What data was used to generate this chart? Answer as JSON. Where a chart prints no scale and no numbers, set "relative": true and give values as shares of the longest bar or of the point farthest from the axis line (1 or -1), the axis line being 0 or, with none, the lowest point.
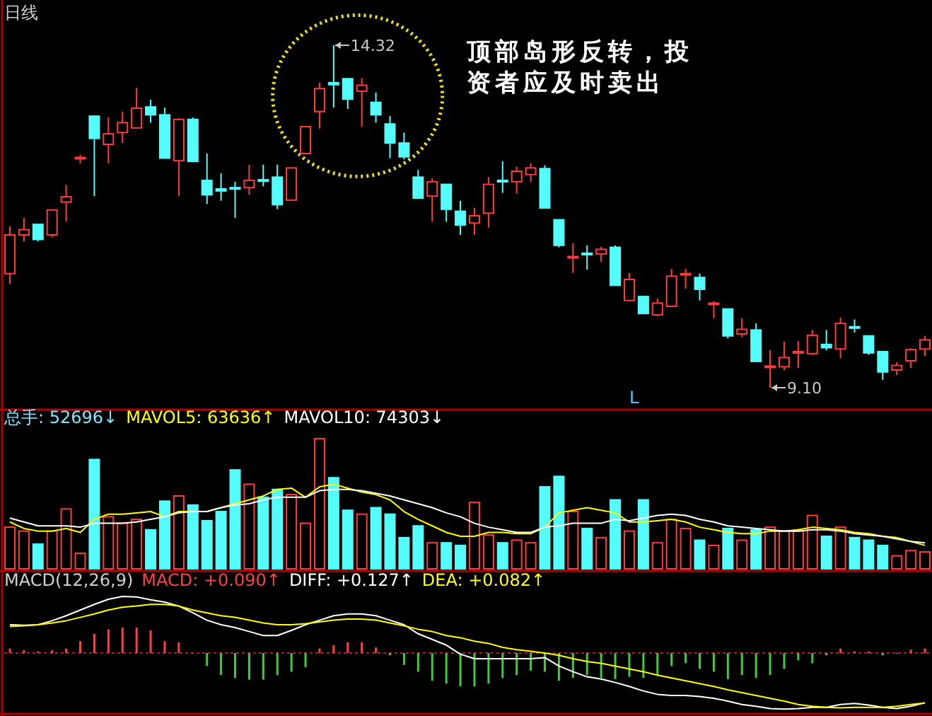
{
  "chart_data": [
    {
      "type": "candlestick",
      "title": "日线",
      "categories": [
        null,
        null,
        null,
        null,
        null,
        null,
        null,
        null,
        null,
        null,
        null,
        null,
        null,
        null,
        null,
        null,
        null,
        null,
        null,
        null,
        null,
        null,
        null,
        null,
        null,
        null,
        null,
        null,
        null,
        null,
        null,
        null,
        null,
        null,
        null,
        null,
        null,
        null,
        null,
        null,
        null,
        null,
        null,
        null,
        null,
        null,
        null,
        null,
        null,
        null,
        null,
        null,
        null,
        null,
        null,
        null,
        null,
        null,
        null,
        null,
        null,
        null,
        null,
        null,
        null,
        null
      ],
      "ohlc": [
        [
          10.84,
          11.56,
          10.68,
          11.43
        ],
        [
          11.43,
          11.69,
          11.33,
          11.51
        ],
        [
          11.59,
          11.59,
          11.33,
          11.36
        ],
        [
          11.43,
          11.81,
          11.39,
          11.81
        ],
        [
          11.93,
          12.19,
          11.63,
          12.01
        ],
        [
          12.6,
          12.65,
          12.52,
          12.61
        ],
        [
          13.24,
          13.24,
          12.02,
          12.9
        ],
        [
          12.81,
          13.22,
          12.52,
          12.97
        ],
        [
          12.99,
          13.31,
          12.83,
          13.14
        ],
        [
          13.06,
          13.67,
          13.06,
          13.36
        ],
        [
          13.38,
          13.49,
          13.14,
          13.26
        ],
        [
          13.26,
          13.37,
          12.6,
          12.6
        ],
        [
          12.56,
          13.21,
          12.02,
          13.19
        ],
        [
          13.19,
          13.22,
          12.55,
          12.55
        ],
        [
          12.26,
          12.67,
          11.9,
          12.04
        ],
        [
          12.13,
          12.37,
          11.95,
          12.1
        ],
        [
          12.15,
          12.24,
          11.69,
          12.14
        ],
        [
          12.15,
          12.5,
          12.04,
          12.26
        ],
        [
          12.27,
          12.5,
          12.17,
          12.25
        ],
        [
          12.31,
          12.5,
          11.82,
          11.89
        ],
        [
          11.96,
          12.45,
          11.96,
          12.45
        ],
        [
          12.67,
          13.08,
          12.67,
          13.08
        ],
        [
          13.31,
          13.75,
          13.05,
          13.66
        ],
        [
          13.75,
          14.32,
          13.37,
          13.72
        ],
        [
          13.81,
          13.81,
          13.35,
          13.5
        ],
        [
          13.62,
          13.82,
          13.08,
          13.71
        ],
        [
          13.45,
          13.6,
          13.14,
          13.26
        ],
        [
          13.12,
          13.24,
          12.6,
          12.83
        ],
        [
          12.83,
          12.99,
          12.58,
          12.62
        ],
        [
          12.31,
          12.42,
          11.99,
          11.99
        ],
        [
          12.02,
          12.29,
          11.63,
          12.24
        ],
        [
          12.2,
          12.2,
          11.63,
          11.82
        ],
        [
          11.79,
          11.95,
          11.43,
          11.58
        ],
        [
          11.61,
          11.84,
          11.43,
          11.72
        ],
        [
          11.76,
          12.31,
          11.54,
          12.2
        ],
        [
          12.26,
          12.55,
          12.07,
          12.24
        ],
        [
          12.24,
          12.47,
          12.06,
          12.4
        ],
        [
          12.35,
          12.52,
          12.24,
          12.45
        ],
        [
          12.44,
          12.49,
          11.84,
          11.84
        ],
        [
          11.66,
          11.66,
          11.24,
          11.27
        ],
        [
          11.09,
          11.3,
          10.85,
          11.1
        ],
        [
          11.15,
          11.27,
          10.9,
          11.13
        ],
        [
          11.14,
          11.25,
          11.02,
          11.21
        ],
        [
          11.24,
          11.27,
          10.66,
          10.66
        ],
        [
          10.43,
          10.85,
          10.43,
          10.75
        ],
        [
          10.49,
          10.49,
          10.23,
          10.23
        ],
        [
          10.21,
          10.46,
          10.19,
          10.39
        ],
        [
          10.34,
          10.91,
          10.34,
          10.8
        ],
        [
          10.82,
          10.91,
          10.61,
          10.84
        ],
        [
          10.78,
          10.84,
          10.43,
          10.6
        ],
        [
          10.37,
          10.42,
          10.16,
          10.39
        ],
        [
          10.3,
          10.3,
          9.85,
          9.89
        ],
        [
          9.92,
          10.16,
          9.87,
          9.99
        ],
        [
          9.98,
          10.08,
          9.5,
          9.5
        ],
        [
          9.42,
          9.67,
          9.1,
          9.43
        ],
        [
          9.42,
          9.8,
          9.37,
          9.56
        ],
        [
          9.63,
          9.81,
          9.4,
          9.65
        ],
        [
          9.62,
          9.98,
          9.6,
          9.9
        ],
        [
          9.76,
          9.98,
          9.67,
          9.71
        ],
        [
          9.69,
          10.17,
          9.55,
          10.08
        ],
        [
          10.03,
          10.14,
          9.94,
          10.02
        ],
        [
          9.89,
          9.89,
          9.6,
          9.63
        ],
        [
          9.65,
          9.65,
          9.22,
          9.34
        ],
        [
          9.37,
          9.49,
          9.29,
          9.44
        ],
        [
          9.51,
          9.7,
          9.4,
          9.68
        ],
        [
          9.69,
          9.89,
          9.58,
          9.83
        ]
      ],
      "colors": [
        "#ff3c3c",
        "#ff3c3c",
        "#54fcfc",
        "#ff3c3c",
        "#ff3c3c",
        "#ff3c3c",
        "#54fcfc",
        "#ff3c3c",
        "#ff3c3c",
        "#ff3c3c",
        "#54fcfc",
        "#54fcfc",
        "#ff3c3c",
        "#54fcfc",
        "#54fcfc",
        "#54fcfc",
        "#54fcfc",
        "#ff3c3c",
        "#54fcfc",
        "#54fcfc",
        "#ff3c3c",
        "#ff3c3c",
        "#ff3c3c",
        "#54fcfc",
        "#54fcfc",
        "#ff3c3c",
        "#54fcfc",
        "#54fcfc",
        "#54fcfc",
        "#54fcfc",
        "#ff3c3c",
        "#54fcfc",
        "#54fcfc",
        "#ff3c3c",
        "#ff3c3c",
        "#54fcfc",
        "#ff3c3c",
        "#ff3c3c",
        "#54fcfc",
        "#54fcfc",
        "#ff3c3c",
        "#54fcfc",
        "#ff3c3c",
        "#54fcfc",
        "#ff3c3c",
        "#54fcfc",
        "#ff3c3c",
        "#ff3c3c",
        "#ff3c3c",
        "#54fcfc",
        "#ff3c3c",
        "#54fcfc",
        "#ff3c3c",
        "#54fcfc",
        "#ff3c3c",
        "#ff3c3c",
        "#ff3c3c",
        "#ff3c3c",
        "#54fcfc",
        "#ff3c3c",
        "#54fcfc",
        "#54fcfc",
        "#54fcfc",
        "#ff3c3c",
        "#ff3c3c",
        "#ff3c3c"
      ],
      "annotations": [
        "14.32",
        "9.10",
        "L",
        "顶部岛形反转，投资者应及时卖出"
      ]
    },
    {
      "type": "bar",
      "relative": true,
      "legend": "top left",
      "categories": [
        null,
        null,
        null,
        null,
        null,
        null,
        null,
        null,
        null,
        null,
        null,
        null,
        null,
        null,
        null,
        null,
        null,
        null,
        null,
        null,
        null,
        null,
        null,
        null,
        null,
        null,
        null,
        null,
        null,
        null,
        null,
        null,
        null,
        null,
        null,
        null,
        null,
        null,
        null,
        null,
        null,
        null,
        null,
        null,
        null,
        null,
        null,
        null,
        null,
        null,
        null,
        null,
        null,
        null,
        null,
        null,
        null,
        null,
        null,
        null,
        null,
        null,
        null,
        null,
        null,
        null
      ],
      "series": [
        {
          "name": "总手: 52696↓",
          "type": "bar",
          "color": "#7fe6ff",
          "colors": [
            "#ff3c3c",
            "#ff3c3c",
            "#54fcfc",
            "#ff3c3c",
            "#ff3c3c",
            "#ff3c3c",
            "#54fcfc",
            "#ff3c3c",
            "#ff3c3c",
            "#ff3c3c",
            "#54fcfc",
            "#54fcfc",
            "#ff3c3c",
            "#54fcfc",
            "#54fcfc",
            "#54fcfc",
            "#54fcfc",
            "#ff3c3c",
            "#54fcfc",
            "#54fcfc",
            "#ff3c3c",
            "#ff3c3c",
            "#ff3c3c",
            "#54fcfc",
            "#54fcfc",
            "#ff3c3c",
            "#54fcfc",
            "#54fcfc",
            "#54fcfc",
            "#54fcfc",
            "#ff3c3c",
            "#54fcfc",
            "#54fcfc",
            "#ff3c3c",
            "#ff3c3c",
            "#54fcfc",
            "#ff3c3c",
            "#ff3c3c",
            "#54fcfc",
            "#54fcfc",
            "#ff3c3c",
            "#54fcfc",
            "#ff3c3c",
            "#54fcfc",
            "#ff3c3c",
            "#54fcfc",
            "#ff3c3c",
            "#ff3c3c",
            "#ff3c3c",
            "#54fcfc",
            "#ff3c3c",
            "#54fcfc",
            "#ff3c3c",
            "#54fcfc",
            "#ff3c3c",
            "#ff3c3c",
            "#ff3c3c",
            "#ff3c3c",
            "#54fcfc",
            "#ff3c3c",
            "#54fcfc",
            "#54fcfc",
            "#54fcfc",
            "#ff3c3c",
            "#ff3c3c",
            "#ff3c3c"
          ],
          "values": [
            0.32,
            0.29,
            0.19,
            0.29,
            0.46,
            0.12,
            0.84,
            0.4,
            0.35,
            0.38,
            0.3,
            0.52,
            0.56,
            0.49,
            0.37,
            0.44,
            0.76,
            0.65,
            0.55,
            0.61,
            0.57,
            0.35,
            1,
            0.7,
            0.45,
            0.42,
            0.47,
            0.42,
            0.24,
            0.33,
            0.2,
            0.2,
            0.18,
            0.51,
            0.26,
            0.2,
            0.22,
            0.2,
            0.63,
            0.71,
            0.44,
            0.31,
            0.24,
            0.53,
            0.29,
            0.53,
            0.2,
            0.38,
            0.31,
            0.22,
            0.18,
            0.31,
            0.22,
            0.3,
            0.32,
            0.29,
            0.29,
            0.41,
            0.25,
            0.32,
            0.24,
            0.22,
            0.18,
            0.1,
            0.14,
            0.13
          ]
        },
        {
          "name": "MAVOL5: 63636↑",
          "type": "line",
          "color": "#ffff00",
          "values": [
            0.36,
            0.31,
            0.29,
            0.29,
            0.31,
            0.28,
            0.38,
            0.42,
            0.42,
            0.43,
            0.44,
            0.4,
            0.44,
            0.44,
            0.44,
            0.47,
            0.5,
            0.53,
            0.56,
            0.61,
            0.62,
            0.55,
            0.63,
            0.65,
            0.62,
            0.59,
            0.57,
            0.53,
            0.44,
            0.38,
            0.33,
            0.28,
            0.25,
            0.25,
            0.28,
            0.28,
            0.27,
            0.27,
            0.32,
            0.43,
            0.45,
            0.47,
            0.45,
            0.43,
            0.36,
            0.36,
            0.37,
            0.38,
            0.36,
            0.32,
            0.3,
            0.28,
            0.27,
            0.27,
            0.29,
            0.29,
            0.3,
            0.32,
            0.31,
            0.3,
            0.28,
            0.27,
            0.25,
            0.24,
            0.21,
            0.18
          ]
        },
        {
          "name": "MAVOL10: 74303↓",
          "type": "line",
          "color": "#ffffff",
          "values": [
            0.39,
            0.36,
            0.33,
            0.33,
            0.33,
            0.32,
            0.35,
            0.35,
            0.35,
            0.36,
            0.38,
            0.4,
            0.43,
            0.44,
            0.44,
            0.47,
            0.49,
            0.5,
            0.53,
            0.55,
            0.55,
            0.55,
            0.6,
            0.61,
            0.61,
            0.6,
            0.58,
            0.56,
            0.53,
            0.5,
            0.47,
            0.43,
            0.4,
            0.35,
            0.32,
            0.3,
            0.28,
            0.28,
            0.32,
            0.33,
            0.35,
            0.35,
            0.35,
            0.38,
            0.37,
            0.39,
            0.41,
            0.42,
            0.41,
            0.38,
            0.36,
            0.33,
            0.32,
            0.31,
            0.3,
            0.29,
            0.29,
            0.3,
            0.3,
            0.29,
            0.27,
            0.26,
            0.25,
            0.23,
            0.21,
            0.2
          ]
        }
      ]
    },
    {
      "type": "bar",
      "title": "MACD(12,26,9)",
      "relative": true,
      "legend": "top left",
      "ref_lines": [
        {
          "axis": "y",
          "value": 0,
          "color": "#b02020",
          "line_style": "dotted"
        }
      ],
      "categories": [
        null,
        null,
        null,
        null,
        null,
        null,
        null,
        null,
        null,
        null,
        null,
        null,
        null,
        null,
        null,
        null,
        null,
        null,
        null,
        null,
        null,
        null,
        null,
        null,
        null,
        null,
        null,
        null,
        null,
        null,
        null,
        null,
        null,
        null,
        null,
        null,
        null,
        null,
        null,
        null,
        null,
        null,
        null,
        null,
        null,
        null,
        null,
        null,
        null,
        null,
        null,
        null,
        null,
        null,
        null,
        null,
        null,
        null,
        null,
        null,
        null,
        null,
        null,
        null,
        null,
        null
      ],
      "series": [
        {
          "name": "MACD: +0.090↑",
          "type": "bar",
          "color": "#ff4040",
          "colors": [
            "#ff4040",
            "#ff4040",
            "#ff4040",
            "#ff4040",
            "#ff4040",
            "#ff4040",
            "#ff4040",
            "#ff4040",
            "#ff4040",
            "#ff4040",
            "#ff4040",
            "#ff4040",
            "#ff4040",
            "#ff4040",
            "#3ccc3c",
            "#3ccc3c",
            "#3ccc3c",
            "#3ccc3c",
            "#3ccc3c",
            "#3ccc3c",
            "#3ccc3c",
            "#3ccc3c",
            "#ff4040",
            "#ff4040",
            "#ff4040",
            "#ff4040",
            "#ff4040",
            "#3ccc3c",
            "#3ccc3c",
            "#3ccc3c",
            "#3ccc3c",
            "#3ccc3c",
            "#3ccc3c",
            "#3ccc3c",
            "#3ccc3c",
            "#3ccc3c",
            "#3ccc3c",
            "#3ccc3c",
            "#3ccc3c",
            "#3ccc3c",
            "#3ccc3c",
            "#3ccc3c",
            "#3ccc3c",
            "#3ccc3c",
            "#3ccc3c",
            "#3ccc3c",
            "#3ccc3c",
            "#3ccc3c",
            "#3ccc3c",
            "#3ccc3c",
            "#3ccc3c",
            "#3ccc3c",
            "#3ccc3c",
            "#3ccc3c",
            "#3ccc3c",
            "#3ccc3c",
            "#3ccc3c",
            "#3ccc3c",
            "#3ccc3c",
            "#ff4040",
            "#ff4040",
            "#ff4040",
            "#3ccc3c",
            "#3ccc3c",
            "#ff4040",
            "#ff4040"
          ],
          "values": [
            0.08,
            0.05,
            0.03,
            0.05,
            0.08,
            0.21,
            0.34,
            0.42,
            0.45,
            0.45,
            0.4,
            0.21,
            0.19,
            0,
            -0.23,
            -0.39,
            -0.44,
            -0.47,
            -0.47,
            -0.39,
            -0.33,
            -0.25,
            0.08,
            0.14,
            0.19,
            0.19,
            0.1,
            -0.04,
            -0.21,
            -0.33,
            -0.49,
            -0.54,
            -0.59,
            -0.59,
            -0.54,
            -0.44,
            -0.39,
            -0.31,
            -0.33,
            -0.49,
            -0.44,
            -0.39,
            -0.44,
            -0.46,
            -0.42,
            -0.44,
            -0.39,
            -0.23,
            -0.18,
            -0.28,
            -0.33,
            -0.46,
            -0.39,
            -0.44,
            -0.39,
            -0.28,
            -0.13,
            -0.18,
            -0.04,
            0.08,
            0.03,
            0.03,
            -0.04,
            0,
            0.06,
            0.08
          ]
        },
        {
          "name": "DIFF: +0.127↑",
          "type": "line",
          "color": "#ffffff",
          "values": [
            0.5,
            0.49,
            0.5,
            0.57,
            0.66,
            0.76,
            0.86,
            0.95,
            1.0,
            0.99,
            0.94,
            0.9,
            0.83,
            0.71,
            0.58,
            0.5,
            0.45,
            0.38,
            0.31,
            0.31,
            0.4,
            0.5,
            0.58,
            0.66,
            0.69,
            0.69,
            0.66,
            0.58,
            0.5,
            0.34,
            0.24,
            0.14,
            -0.02,
            -0.1,
            -0.1,
            -0.1,
            -0.1,
            -0.1,
            -0.08,
            -0.23,
            -0.33,
            -0.42,
            -0.46,
            -0.52,
            -0.59,
            -0.67,
            -0.73,
            -0.75,
            -0.75,
            -0.77,
            -0.8,
            -0.85,
            -0.91,
            -0.94,
            -0.98,
            -0.99,
            -0.98,
            -0.96,
            -0.96,
            -0.91,
            -0.89,
            -0.92,
            -0.96,
            -0.98,
            -0.94,
            -0.88
          ]
        },
        {
          "name": "DEA: +0.082↑",
          "type": "line",
          "color": "#ffff00",
          "values": [
            0.47,
            0.48,
            0.5,
            0.53,
            0.57,
            0.63,
            0.69,
            0.76,
            0.81,
            0.83,
            0.86,
            0.86,
            0.83,
            0.76,
            0.71,
            0.66,
            0.63,
            0.58,
            0.53,
            0.5,
            0.5,
            0.52,
            0.55,
            0.58,
            0.6,
            0.6,
            0.58,
            0.53,
            0.48,
            0.42,
            0.38,
            0.31,
            0.27,
            0.21,
            0.17,
            0.1,
            0.06,
            0.03,
            0,
            -0.04,
            -0.1,
            -0.15,
            -0.18,
            -0.23,
            -0.28,
            -0.33,
            -0.39,
            -0.44,
            -0.49,
            -0.54,
            -0.59,
            -0.65,
            -0.7,
            -0.75,
            -0.8,
            -0.85,
            -0.91,
            -0.94,
            -0.96,
            -0.97,
            -0.96,
            -0.96,
            -0.96,
            -0.94,
            -0.91,
            -0.88
          ]
        }
      ]
    }
  ]
}
